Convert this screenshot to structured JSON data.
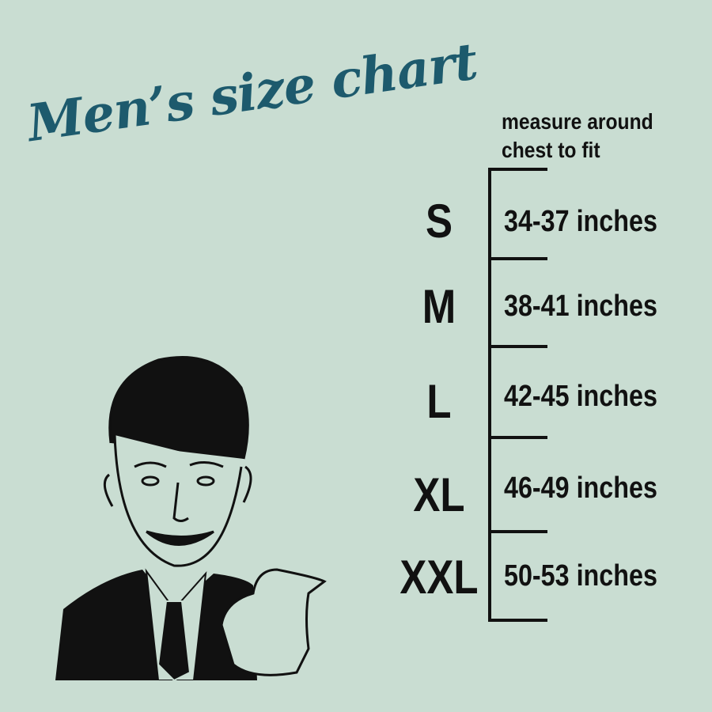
{
  "title": "Men’s size chart",
  "instruction": [
    "measure around",
    "chest to fit"
  ],
  "colors": {
    "background": "#c9ddd2",
    "title": "#1d5a6d",
    "text": "#111111"
  },
  "sizes": [
    {
      "label": "S",
      "range": "34-37 inches"
    },
    {
      "label": "M",
      "range": "38-41 inches"
    },
    {
      "label": "L",
      "range": "42-45 inches"
    },
    {
      "label": "XL",
      "range": "46-49 inches"
    },
    {
      "label": "XXL",
      "range": "50-53 inches"
    }
  ],
  "illustration": "retro-man-thumbs-pointing"
}
